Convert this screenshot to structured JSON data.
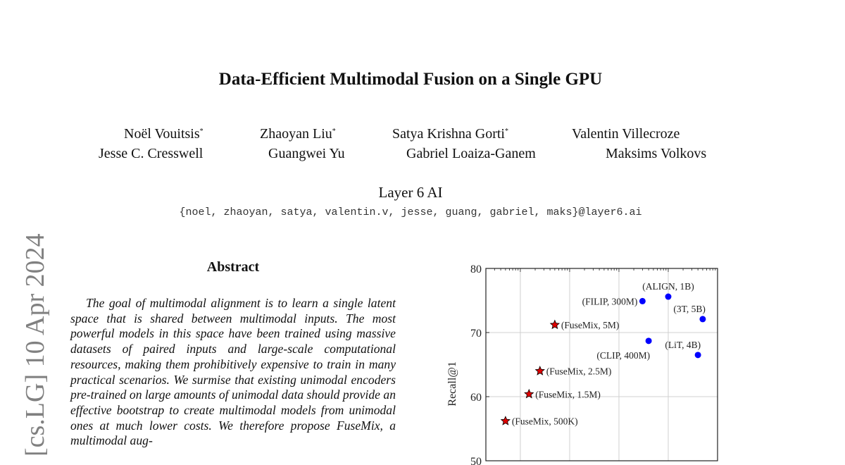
{
  "arxiv_stamp": "[cs.LG]  10 Apr 2024",
  "title": "Data-Efficient Multimodal Fusion on a Single GPU",
  "authors": [
    {
      "name": "Noël Vouitsis",
      "mark": "*"
    },
    {
      "name": "Zhaoyan Liu",
      "mark": "*"
    },
    {
      "name": "Satya Krishna Gorti",
      "mark": "*"
    },
    {
      "name": "Valentin Villecroze",
      "mark": ""
    },
    {
      "name": "Jesse C. Cresswell",
      "mark": ""
    },
    {
      "name": "Guangwei Yu",
      "mark": ""
    },
    {
      "name": "Gabriel Loaiza-Ganem",
      "mark": ""
    },
    {
      "name": "Maksims Volkovs",
      "mark": ""
    }
  ],
  "affiliation": "Layer 6 AI",
  "emails": "{noel, zhaoyan, satya, valentin.v, jesse, guang, gabriel, maks}@layer6.ai",
  "abstract": {
    "heading": "Abstract",
    "text": "The goal of multimodal alignment is to learn a single latent space that is shared between multimodal inputs. The most powerful models in this space have been trained using massive datasets of paired inputs and large-scale computational resources, making them prohibitively expensive to train in many practical scenarios. We surmise that existing unimodal encoders pre-trained on large amounts of unimodal data should provide an effective bootstrap to create multimodal models from unimodal ones at much lower costs. We therefore propose FuseMix, a multimodal aug-"
  },
  "chart_data": {
    "type": "scatter",
    "ylabel": "Recall@1",
    "xlabel": "",
    "x_scale": "log",
    "xlim": [
      200000,
      10000000000
    ],
    "ylim": [
      50,
      80
    ],
    "yticks": [
      50,
      60,
      70,
      80
    ],
    "grid": true,
    "series": [
      {
        "marker": "star",
        "color": "#e00000",
        "points": [
          {
            "label": "(FuseMix, 500K)",
            "x": 500000,
            "y": 56.2
          },
          {
            "label": "(FuseMix, 1.5M)",
            "x": 1500000,
            "y": 60.4
          },
          {
            "label": "(FuseMix, 2.5M)",
            "x": 2500000,
            "y": 64.0
          },
          {
            "label": "(FuseMix, 5M)",
            "x": 5000000,
            "y": 71.2
          }
        ]
      },
      {
        "marker": "circle",
        "color": "#0000ff",
        "points": [
          {
            "label": "(FILIP, 300M)",
            "x": 300000000,
            "y": 74.9
          },
          {
            "label": "(ALIGN, 1B)",
            "x": 1000000000,
            "y": 75.6
          },
          {
            "label": "(3T, 5B)",
            "x": 5000000000,
            "y": 72.1
          },
          {
            "label": "(CLIP, 400M)",
            "x": 400000000,
            "y": 68.7
          },
          {
            "label": "(LiT, 4B)",
            "x": 4000000000,
            "y": 66.5
          }
        ]
      }
    ]
  }
}
